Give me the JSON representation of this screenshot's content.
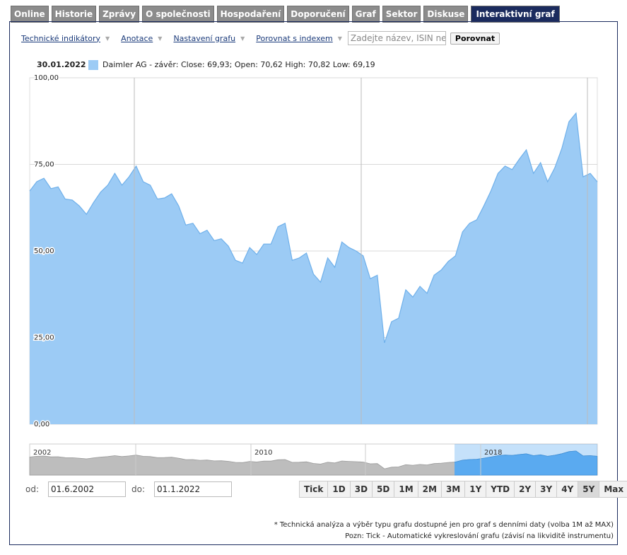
{
  "tabs": [
    "Online",
    "Historie",
    "Zprávy",
    "O společnosti",
    "Hospodaření",
    "Doporučení",
    "Graf",
    "Sektor",
    "Diskuse",
    "Interaktivní graf"
  ],
  "active_tab": 9,
  "toolbar": {
    "links": [
      "Technické indikátory",
      "Anotace",
      "Nastavení grafu",
      "Porovnat s indexem"
    ],
    "search_placeholder": "Zadejte název, ISIN neb",
    "button": "Porovnat"
  },
  "chart_data": {
    "type": "area",
    "legend_date": "30.01.2022",
    "series": [
      {
        "name": "Daimler AG - závěr: Close: 69,93; Open: 70,62 High: 70,82 Low: 69,19",
        "color": "#9ccbf5",
        "values": [
          67.3,
          70,
          71,
          68,
          68.5,
          65,
          64.7,
          63,
          60.6,
          64,
          67,
          69,
          72.4,
          69,
          71.4,
          74.5,
          70,
          69,
          65,
          65.3,
          66.5,
          63,
          57.5,
          58,
          55,
          56,
          53,
          53.5,
          51.4,
          47.3,
          46.5,
          51,
          49,
          52,
          52,
          57,
          58,
          47.3,
          48,
          49.4,
          43.3,
          41,
          48,
          45.3,
          52.6,
          51,
          50,
          48.6,
          42,
          43,
          23.5,
          29.6,
          30.6,
          38.8,
          36.7,
          39.8,
          37.8,
          43,
          44.5,
          47,
          48.6,
          55.5,
          58,
          59,
          63,
          67.3,
          72.4,
          74.5,
          73.5,
          76.5,
          79.2,
          72.4,
          75.5,
          70,
          74,
          79.6,
          87.3,
          89.8,
          71.4,
          72.4,
          69.93
        ]
      }
    ],
    "ylim": [
      0,
      100
    ],
    "yticks": [
      {
        "value": 0,
        "label": "0,00"
      },
      {
        "value": 25,
        "label": "25,00"
      },
      {
        "value": 50,
        "label": "50,00"
      },
      {
        "value": 75,
        "label": "75,00"
      },
      {
        "value": 100,
        "label": "100,00"
      }
    ],
    "grid": true
  },
  "navigator": {
    "labels": [
      "2002",
      "2010",
      "2018"
    ]
  },
  "date_range": {
    "from_label": "od:",
    "from": "01.6.2002",
    "to_label": "do:",
    "to": "01.1.2022"
  },
  "ranges": [
    "Tick",
    "1D",
    "3D",
    "5D",
    "1M",
    "2M",
    "3M",
    "1Y",
    "YTD",
    "2Y",
    "3Y",
    "4Y",
    "5Y",
    "Max"
  ],
  "active_range": 12,
  "notes": [
    "* Technická analýza a výběr typu grafu dostupné jen pro graf s denními daty (volba 1M až MAX)",
    "Pozn: Tick - Automatické vykreslování grafu (závisí na likviditě instrumentu)"
  ]
}
